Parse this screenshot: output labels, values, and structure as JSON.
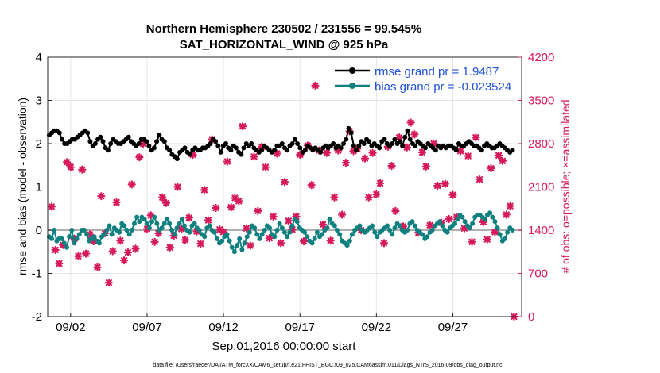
{
  "chart_data": {
    "type": "line",
    "title": [
      "Northern Hemisphere 230502 / 231556 = 99.545%",
      "SAT_HORIZONTAL_WIND @ 925 hPa"
    ],
    "xlabel": "Sep.01,2016 00:00:00 start",
    "ylabel_left": "rmse and bias (model - observation)",
    "ylabel_right": "# of obs: o=possible; ×=assimilated",
    "footer": "data file: /Users/raeder/DAI/ATM_forcXX/CAM6_setup/f.e21.FHIST_BGC.f09_025.CAM6assim.011/Diags_NTrS_2016-09/obs_diag_output.nc",
    "xlim": [
      0.5,
      31.5
    ],
    "ylim_left": [
      -2,
      4
    ],
    "ylim_right": [
      0,
      4200
    ],
    "xticks": [
      {
        "v": 2,
        "label": "09/02"
      },
      {
        "v": 7,
        "label": "09/07"
      },
      {
        "v": 12,
        "label": "09/12"
      },
      {
        "v": 17,
        "label": "09/17"
      },
      {
        "v": 22,
        "label": "09/22"
      },
      {
        "v": 27,
        "label": "09/27"
      }
    ],
    "yticks_left": [
      -2,
      -1,
      0,
      1,
      2,
      3,
      4
    ],
    "yticks_right": [
      0,
      700,
      1400,
      2100,
      2800,
      3500,
      4200
    ],
    "colors": {
      "rmse": "#000000",
      "bias": "#0f8080",
      "obs": "#d6195a",
      "legend_text": "#1f52d6",
      "zero_line": "#b0b0b0",
      "grid": "#e6e6e6"
    },
    "series": [
      {
        "name": "rmse grand pr = 1.9487",
        "axis": "left",
        "color": "#000000",
        "values": [
          2.2,
          2.25,
          2.3,
          2.3,
          2.25,
          2.1,
          2.0,
          2.0,
          2.05,
          2.1,
          2.1,
          2.15,
          2.2,
          2.25,
          2.3,
          2.25,
          2.05,
          1.95,
          2.0,
          2.1,
          2.15,
          2.05,
          1.9,
          1.85,
          2.0,
          2.1,
          2.05,
          2.0,
          2.0,
          2.05,
          2.1,
          2.15,
          2.05,
          2.0,
          1.95,
          2.0,
          2.1,
          2.1,
          2.05,
          1.95,
          1.85,
          1.9,
          2.05,
          2.2,
          2.1,
          2.05,
          1.9,
          1.85,
          1.75,
          1.7,
          1.65,
          1.8,
          1.85,
          1.9,
          1.8,
          1.75,
          1.85,
          1.9,
          1.85,
          1.85,
          1.9,
          1.9,
          1.95,
          2.0,
          2.1,
          2.05,
          1.95,
          1.8,
          1.95,
          2.0,
          1.9,
          1.85,
          1.95,
          1.9,
          1.8,
          1.75,
          1.9,
          2.0,
          1.95,
          2.0,
          1.9,
          1.85,
          1.8,
          1.85,
          1.95,
          1.9,
          1.85,
          1.8,
          1.85,
          1.95,
          1.95,
          2.0,
          1.9,
          1.85,
          1.95,
          2.0,
          2.1,
          2.0,
          1.9,
          1.8,
          1.85,
          1.95,
          1.9,
          1.85,
          1.9,
          1.85,
          1.8,
          1.9,
          1.95,
          1.9,
          1.95,
          2.0,
          1.9,
          1.95,
          1.9,
          2.0,
          2.1,
          2.35,
          2.25,
          1.95,
          1.85,
          1.95,
          2.05,
          2.0,
          2.1,
          2.05,
          1.95,
          2.0,
          1.95,
          1.9,
          2.05,
          2.1,
          2.0,
          1.95,
          2.0,
          2.1,
          2.0,
          2.05,
          1.95,
          2.15,
          2.3,
          2.1,
          2.0,
          1.95,
          2.05,
          2.0,
          1.95,
          1.9,
          2.0,
          1.95,
          1.9,
          1.85,
          1.95,
          1.9,
          1.95,
          1.9,
          1.95,
          1.95,
          1.9,
          1.85,
          2.0,
          1.95,
          1.95,
          2.0,
          2.05,
          2.0,
          1.95,
          1.95,
          1.9,
          1.85,
          1.95,
          2.0,
          1.95,
          1.9,
          1.9,
          1.95,
          2.0,
          1.95,
          1.9,
          1.85,
          1.8,
          1.85
        ]
      },
      {
        "name": "bias grand pr = -0.023524",
        "axis": "left",
        "color": "#0f8080",
        "values": [
          -0.15,
          -0.2,
          0.0,
          -0.25,
          -0.2,
          -0.2,
          -0.3,
          -0.4,
          -0.15,
          0.0,
          -0.3,
          -0.2,
          -0.1,
          0.0,
          0.0,
          -0.1,
          -0.25,
          -0.2,
          -0.15,
          -0.25,
          -0.3,
          -0.15,
          -0.1,
          0.0,
          0.1,
          -0.1,
          0.05,
          0.0,
          -0.05,
          0.15,
          0.1,
          0.0,
          -0.1,
          0.0,
          0.15,
          0.3,
          0.2,
          0.3,
          0.25,
          0.15,
          0.05,
          0.2,
          0.3,
          0.15,
          0.0,
          0.05,
          0.15,
          0.25,
          0.15,
          0.0,
          -0.1,
          0.05,
          0.15,
          0.25,
          0.1,
          0.0,
          -0.05,
          0.1,
          0.15,
          0.05,
          0.0,
          -0.1,
          -0.15,
          0.05,
          0.1,
          0.0,
          -0.05,
          -0.2,
          -0.3,
          -0.25,
          -0.15,
          -0.1,
          -0.25,
          -0.4,
          -0.5,
          -0.35,
          -0.2,
          -0.45,
          -0.3,
          -0.15,
          -0.05,
          0.1,
          0.05,
          -0.1,
          -0.2,
          -0.1,
          0.0,
          0.1,
          0.05,
          -0.1,
          -0.15,
          0.0,
          0.15,
          0.05,
          -0.05,
          -0.15,
          -0.05,
          0.1,
          0.25,
          0.2,
          0.05,
          0.0,
          -0.05,
          -0.15,
          -0.25,
          -0.3,
          -0.2,
          -0.05,
          -0.15,
          -0.1,
          0.0,
          0.05,
          0.25,
          0.15,
          0.1,
          0.0,
          -0.1,
          -0.25,
          -0.3,
          -0.35,
          -0.25,
          -0.1,
          0.0,
          0.05,
          0.1,
          0.0,
          -0.05,
          0.0,
          0.05,
          0.1,
          -0.05,
          -0.15,
          -0.05,
          0.0,
          0.05,
          0.1,
          0.0,
          -0.1,
          0.05,
          0.15,
          0.1,
          0.0,
          -0.05,
          0.0,
          0.15,
          0.2,
          0.1,
          0.0,
          -0.05,
          -0.1,
          -0.2,
          -0.15,
          -0.05,
          0.0,
          0.1,
          0.15,
          0.2,
          0.1,
          0.0,
          -0.05,
          0.05,
          0.1,
          0.15,
          0.25,
          0.35,
          0.3,
          0.2,
          0.1,
          0.05,
          0.15,
          0.3,
          0.35,
          0.35,
          0.3,
          0.25,
          0.35,
          0.4,
          0.3,
          0.2,
          0.05,
          -0.1,
          -0.25,
          -0.2,
          -0.05,
          0.05,
          0.0
        ]
      },
      {
        "name": "assimilated obs",
        "axis": "right",
        "color": "#d6195a",
        "points": [
          [
            0.75,
            1780
          ],
          [
            1.0,
            1080
          ],
          [
            1.25,
            860
          ],
          [
            1.5,
            1160
          ],
          [
            1.75,
            2500
          ],
          [
            2.0,
            2420
          ],
          [
            2.25,
            1260
          ],
          [
            2.5,
            980
          ],
          [
            2.75,
            2380
          ],
          [
            3.0,
            1020
          ],
          [
            3.25,
            1330
          ],
          [
            3.5,
            1220
          ],
          [
            3.75,
            800
          ],
          [
            4.0,
            1950
          ],
          [
            4.25,
            1350
          ],
          [
            4.5,
            550
          ],
          [
            4.75,
            1060
          ],
          [
            5.0,
            1850
          ],
          [
            5.25,
            1230
          ],
          [
            5.5,
            910
          ],
          [
            5.75,
            1040
          ],
          [
            6.0,
            2140
          ],
          [
            6.25,
            1100
          ],
          [
            6.5,
            2580
          ],
          [
            6.75,
            2800
          ],
          [
            7.0,
            1420
          ],
          [
            7.25,
            1640
          ],
          [
            7.5,
            1210
          ],
          [
            7.75,
            1350
          ],
          [
            8.0,
            1930
          ],
          [
            8.25,
            1840
          ],
          [
            8.5,
            1120
          ],
          [
            8.75,
            1310
          ],
          [
            9.0,
            2100
          ],
          [
            9.25,
            1420
          ],
          [
            9.5,
            1240
          ],
          [
            9.75,
            1600
          ],
          [
            10.0,
            2620
          ],
          [
            10.25,
            1380
          ],
          [
            10.5,
            1180
          ],
          [
            10.75,
            2050
          ],
          [
            11.0,
            1560
          ],
          [
            11.25,
            2870
          ],
          [
            11.5,
            1760
          ],
          [
            11.75,
            1410
          ],
          [
            12.0,
            1370
          ],
          [
            12.25,
            2510
          ],
          [
            12.5,
            1770
          ],
          [
            12.75,
            1920
          ],
          [
            13.0,
            1870
          ],
          [
            13.25,
            3080
          ],
          [
            13.5,
            1430
          ],
          [
            13.75,
            1150
          ],
          [
            14.0,
            2590
          ],
          [
            14.25,
            1710
          ],
          [
            14.5,
            2750
          ],
          [
            14.75,
            2420
          ],
          [
            15.0,
            1270
          ],
          [
            15.25,
            1620
          ],
          [
            15.5,
            2640
          ],
          [
            15.75,
            1190
          ],
          [
            16.0,
            2180
          ],
          [
            16.25,
            1550
          ],
          [
            16.5,
            1410
          ],
          [
            16.75,
            1620
          ],
          [
            17.0,
            2620
          ],
          [
            17.25,
            1220
          ],
          [
            17.5,
            2770
          ],
          [
            17.75,
            2130
          ],
          [
            18.0,
            3740
          ],
          [
            18.25,
            2690
          ],
          [
            18.5,
            1490
          ],
          [
            18.75,
            2650
          ],
          [
            19.0,
            1230
          ],
          [
            19.25,
            1930
          ],
          [
            19.5,
            2690
          ],
          [
            19.75,
            1650
          ],
          [
            20.0,
            2490
          ],
          [
            20.25,
            3000
          ],
          [
            20.5,
            2680
          ],
          [
            20.75,
            2720
          ],
          [
            21.0,
            1400
          ],
          [
            21.25,
            2560
          ],
          [
            21.5,
            1930
          ],
          [
            21.75,
            2650
          ],
          [
            22.0,
            1980
          ],
          [
            22.25,
            2160
          ],
          [
            22.5,
            1190
          ],
          [
            22.75,
            2750
          ],
          [
            23.0,
            2440
          ],
          [
            23.25,
            1710
          ],
          [
            23.5,
            2900
          ],
          [
            23.75,
            1460
          ],
          [
            24.0,
            2740
          ],
          [
            24.25,
            3140
          ],
          [
            24.5,
            2950
          ],
          [
            24.75,
            1360
          ],
          [
            25.0,
            2660
          ],
          [
            25.25,
            2430
          ],
          [
            25.5,
            1480
          ],
          [
            25.75,
            2800
          ],
          [
            26.0,
            2120
          ],
          [
            26.25,
            1520
          ],
          [
            26.5,
            2150
          ],
          [
            26.75,
            1580
          ],
          [
            27.0,
            1970
          ],
          [
            27.25,
            1610
          ],
          [
            27.5,
            2680
          ],
          [
            27.75,
            1430
          ],
          [
            28.0,
            2600
          ],
          [
            28.25,
            1210
          ],
          [
            28.5,
            2900
          ],
          [
            28.75,
            2220
          ],
          [
            29.0,
            1530
          ],
          [
            29.25,
            1250
          ],
          [
            29.5,
            2400
          ],
          [
            29.75,
            1370
          ],
          [
            30.0,
            2610
          ],
          [
            30.25,
            2520
          ],
          [
            30.5,
            1650
          ],
          [
            30.75,
            1790
          ],
          [
            31.0,
            0
          ]
        ]
      }
    ]
  }
}
